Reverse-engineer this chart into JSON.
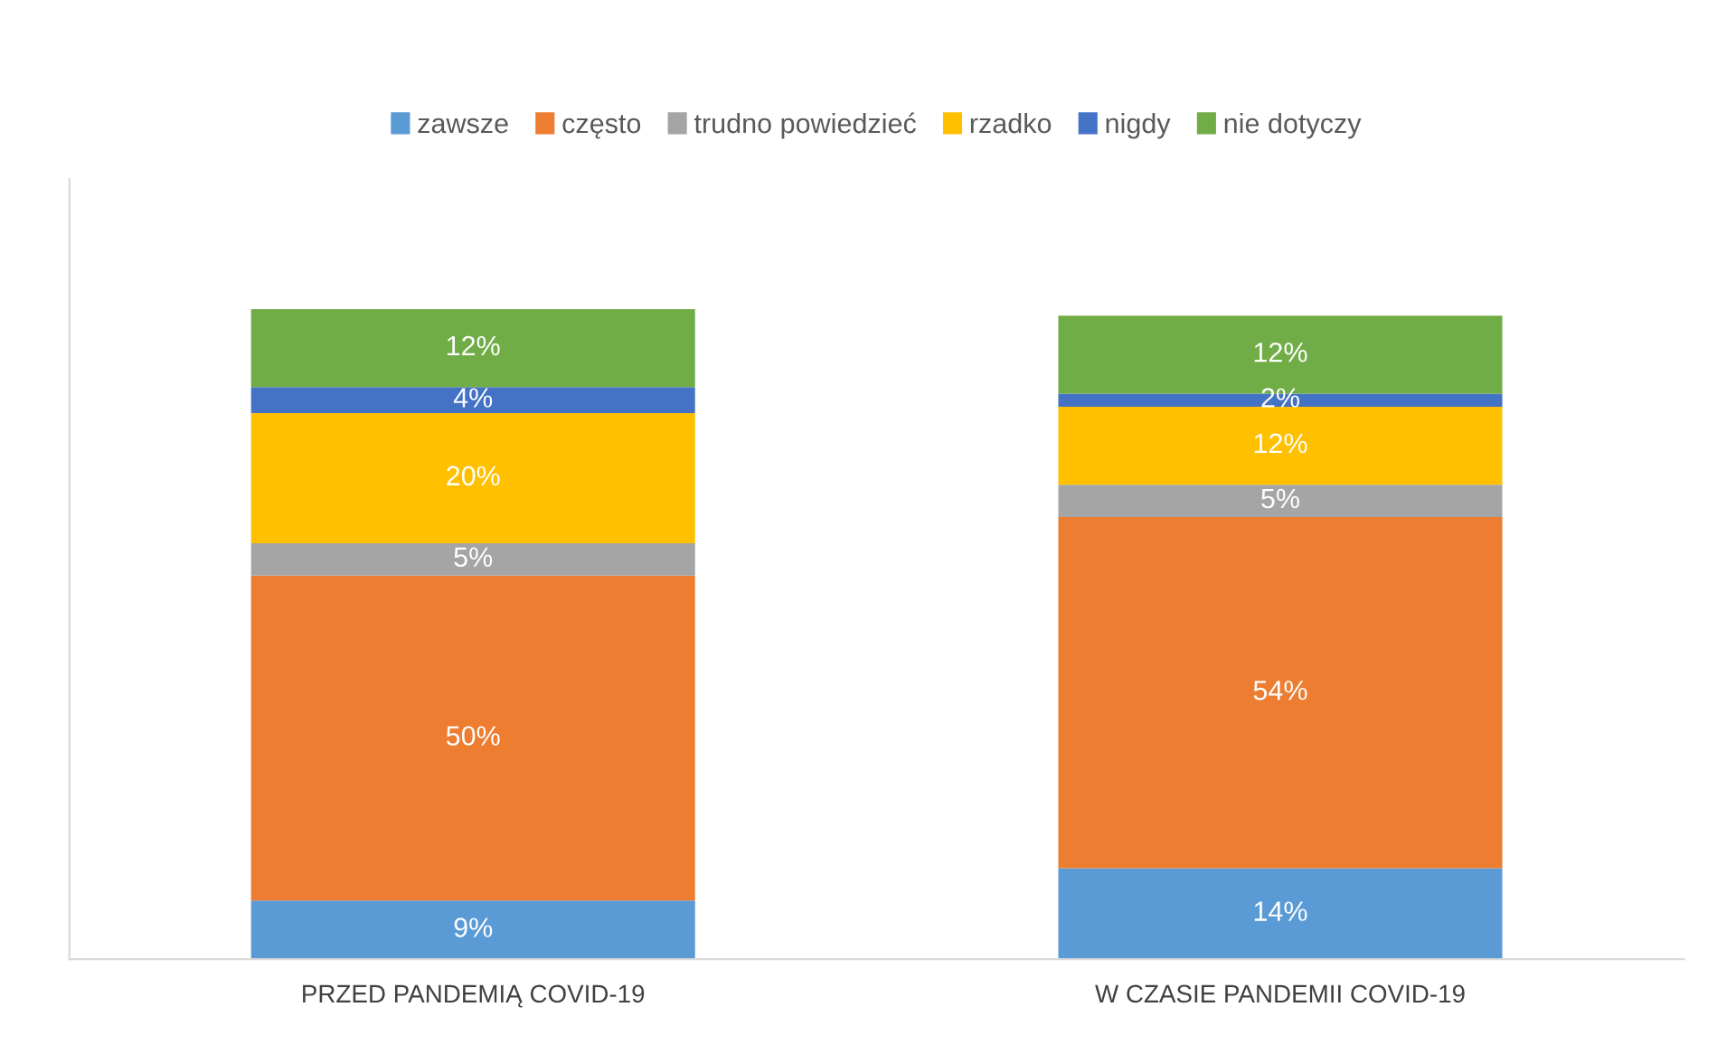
{
  "chart_data": {
    "type": "bar",
    "stacked": true,
    "legend": "top",
    "grid": false,
    "tick_labels": "x",
    "categories": [
      "PRZED PANDEMIĄ COVID-19",
      "W CZASIE PANDEMII COVID-19"
    ],
    "series": [
      {
        "name": "zawsze",
        "color": "#5b9bd5",
        "values": [
          9,
          14
        ],
        "value_labels": [
          "9%",
          "14%"
        ]
      },
      {
        "name": "często",
        "color": "#ed7d31",
        "values": [
          50,
          54
        ],
        "value_labels": [
          "50%",
          "54%"
        ]
      },
      {
        "name": "trudno powiedzieć",
        "color": "#a5a5a5",
        "values": [
          5,
          5
        ],
        "value_labels": [
          "5%",
          "5%"
        ]
      },
      {
        "name": "rzadko",
        "color": "#ffc000",
        "values": [
          20,
          12
        ],
        "value_labels": [
          "20%",
          "12%"
        ]
      },
      {
        "name": "nigdy",
        "color": "#4472c4",
        "values": [
          4,
          2
        ],
        "value_labels": [
          "4%",
          "2%"
        ]
      },
      {
        "name": "nie dotyczy",
        "color": "#70ad47",
        "values": [
          12,
          12
        ],
        "value_labels": [
          "12%",
          "12%"
        ]
      }
    ]
  }
}
